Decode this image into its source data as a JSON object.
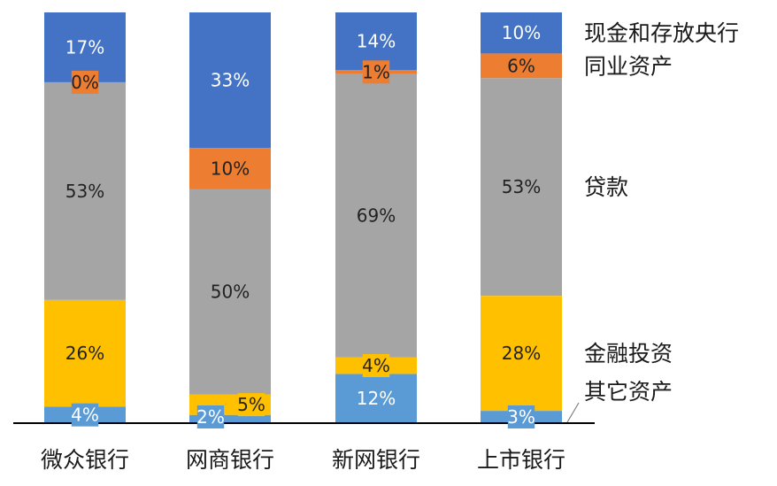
{
  "chart_data": {
    "type": "bar",
    "stacked": true,
    "normalized": true,
    "categories": [
      "微众银行",
      "网商银行",
      "新网银行",
      "上市银行"
    ],
    "series": [
      {
        "name": "其它资产",
        "values": [
          4,
          2,
          12,
          3
        ],
        "labels": [
          "4%",
          "2%",
          "12%",
          "3%"
        ],
        "color": "#5B9BD5"
      },
      {
        "name": "金融投资",
        "values": [
          26,
          5,
          4,
          28
        ],
        "labels": [
          "26%",
          "5%",
          "4%",
          "28%"
        ],
        "color": "#FFC000"
      },
      {
        "name": "贷款",
        "values": [
          53,
          50,
          69,
          53
        ],
        "labels": [
          "53%",
          "50%",
          "69%",
          "53%"
        ],
        "color": "#A5A5A5"
      },
      {
        "name": "同业资产",
        "values": [
          0,
          10,
          1,
          6
        ],
        "labels": [
          "0%",
          "10%",
          "1%",
          "6%"
        ],
        "color": "#ED7D31"
      },
      {
        "name": "现金和存放央行",
        "values": [
          17,
          33,
          14,
          10
        ],
        "labels": [
          "17%",
          "33%",
          "14%",
          "10%"
        ],
        "color": "#4472C4"
      }
    ],
    "ylim": [
      0,
      100
    ],
    "grid": false,
    "legend": "right, as labels next to the last bar"
  }
}
